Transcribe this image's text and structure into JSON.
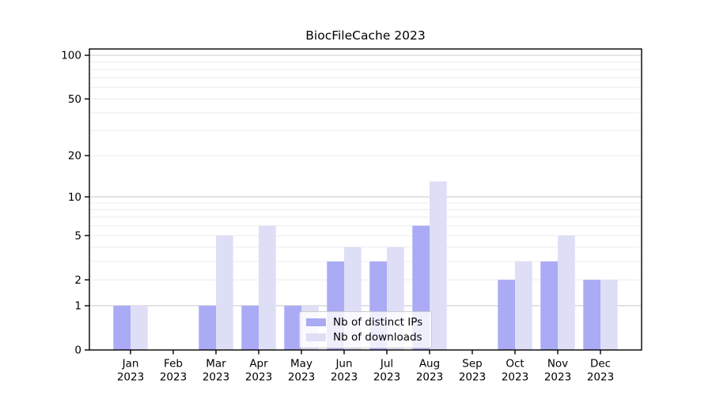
{
  "chart_data": {
    "type": "bar",
    "title": "BiocFileCache 2023",
    "x_tick_labels": [
      [
        "Jan",
        "2023"
      ],
      [
        "Feb",
        "2023"
      ],
      [
        "Mar",
        "2023"
      ],
      [
        "Apr",
        "2023"
      ],
      [
        "May",
        "2023"
      ],
      [
        "Jun",
        "2023"
      ],
      [
        "Jul",
        "2023"
      ],
      [
        "Aug",
        "2023"
      ],
      [
        "Sep",
        "2023"
      ],
      [
        "Oct",
        "2023"
      ],
      [
        "Nov",
        "2023"
      ],
      [
        "Dec",
        "2023"
      ]
    ],
    "series": [
      {
        "name": "Nb of distinct IPs",
        "color": "#aaaaf5",
        "values": [
          1,
          0,
          1,
          1,
          1,
          3,
          3,
          6,
          0,
          2,
          3,
          2
        ]
      },
      {
        "name": "Nb of downloads",
        "color": "#dedef7",
        "values": [
          1,
          0,
          5,
          6,
          1,
          4,
          4,
          13,
          0,
          3,
          5,
          2
        ]
      }
    ],
    "y_scale": "log10(1+y)",
    "y_tick_values": [
      0,
      1,
      2,
      5,
      10,
      20,
      50,
      100
    ],
    "y_minor_gridlines": [
      2,
      3,
      4,
      5,
      6,
      7,
      8,
      9,
      20,
      30,
      40,
      50,
      60,
      70,
      80,
      90
    ],
    "y_major_gridlines": [
      1,
      10,
      100
    ],
    "ylim": [
      0,
      111
    ],
    "grid": true,
    "legend_position": "lower center",
    "colors": {
      "axis": "#000000",
      "major_grid": "#cccccc",
      "minor_grid": "#ececec",
      "tick_label": "#000000",
      "background": "#ffffff"
    }
  }
}
